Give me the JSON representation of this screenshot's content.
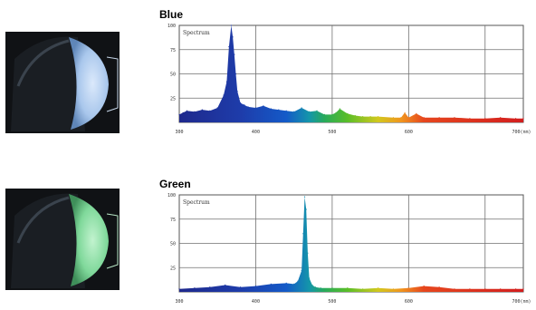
{
  "chart_data": [
    {
      "type": "area",
      "title": "Blue",
      "inner_label": "Spectrum",
      "xlim": [
        300,
        750
      ],
      "ylim": [
        0,
        100
      ],
      "x_unit": "nm",
      "xticks": [
        300,
        400,
        500,
        600,
        700
      ],
      "xtick_labels": [
        "300",
        "400",
        "500",
        "600",
        "700(nm)"
      ],
      "yticks": [
        0,
        25,
        50,
        75,
        100
      ],
      "ytick_labels": [
        "",
        "25",
        "50",
        "75",
        "100"
      ],
      "grid": true,
      "x": [
        300,
        305,
        310,
        320,
        330,
        340,
        350,
        358,
        362,
        365,
        368,
        370,
        372,
        374,
        376,
        380,
        385,
        390,
        400,
        410,
        420,
        430,
        440,
        450,
        460,
        470,
        480,
        490,
        500,
        505,
        510,
        520,
        530,
        540,
        550,
        560,
        580,
        590,
        595,
        600,
        610,
        620,
        640,
        660,
        680,
        700,
        720,
        740,
        750
      ],
      "y": [
        8,
        10,
        12,
        11,
        13,
        12,
        15,
        28,
        42,
        78,
        100,
        88,
        70,
        50,
        32,
        20,
        18,
        16,
        15,
        17,
        14,
        13,
        12,
        11,
        15,
        11,
        12,
        8,
        8,
        10,
        14,
        9,
        7,
        6,
        6,
        6,
        5,
        5,
        10,
        5,
        9,
        5,
        5,
        5,
        4,
        4,
        5,
        4,
        4
      ]
    },
    {
      "type": "area",
      "title": "Green",
      "inner_label": "Spectrum",
      "xlim": [
        300,
        750
      ],
      "ylim": [
        0,
        100
      ],
      "x_unit": "nm",
      "xticks": [
        300,
        400,
        500,
        600,
        700
      ],
      "xtick_labels": [
        "300",
        "400",
        "500",
        "600",
        "700(nm)"
      ],
      "yticks": [
        0,
        25,
        50,
        75,
        100
      ],
      "ytick_labels": [
        "",
        "25",
        "50",
        "75",
        "100"
      ],
      "grid": true,
      "x": [
        300,
        320,
        340,
        360,
        380,
        400,
        420,
        440,
        450,
        455,
        460,
        462,
        464,
        466,
        468,
        470,
        474,
        478,
        485,
        500,
        520,
        540,
        560,
        580,
        600,
        620,
        640,
        660,
        680,
        700,
        720,
        740,
        750
      ],
      "y": [
        3,
        4,
        5,
        7,
        5,
        6,
        8,
        9,
        8,
        11,
        22,
        60,
        98,
        85,
        40,
        14,
        7,
        5,
        4,
        4,
        4,
        3,
        4,
        3,
        4,
        6,
        5,
        3,
        3,
        3,
        3,
        3,
        3
      ]
    }
  ],
  "colors": {
    "grid": "#707070",
    "frame": "#555555",
    "text": "#000000",
    "blue_lamp": "#a9c7ec",
    "green_lamp": "#7fd89a",
    "photo_bg": "#0b0d0f"
  }
}
